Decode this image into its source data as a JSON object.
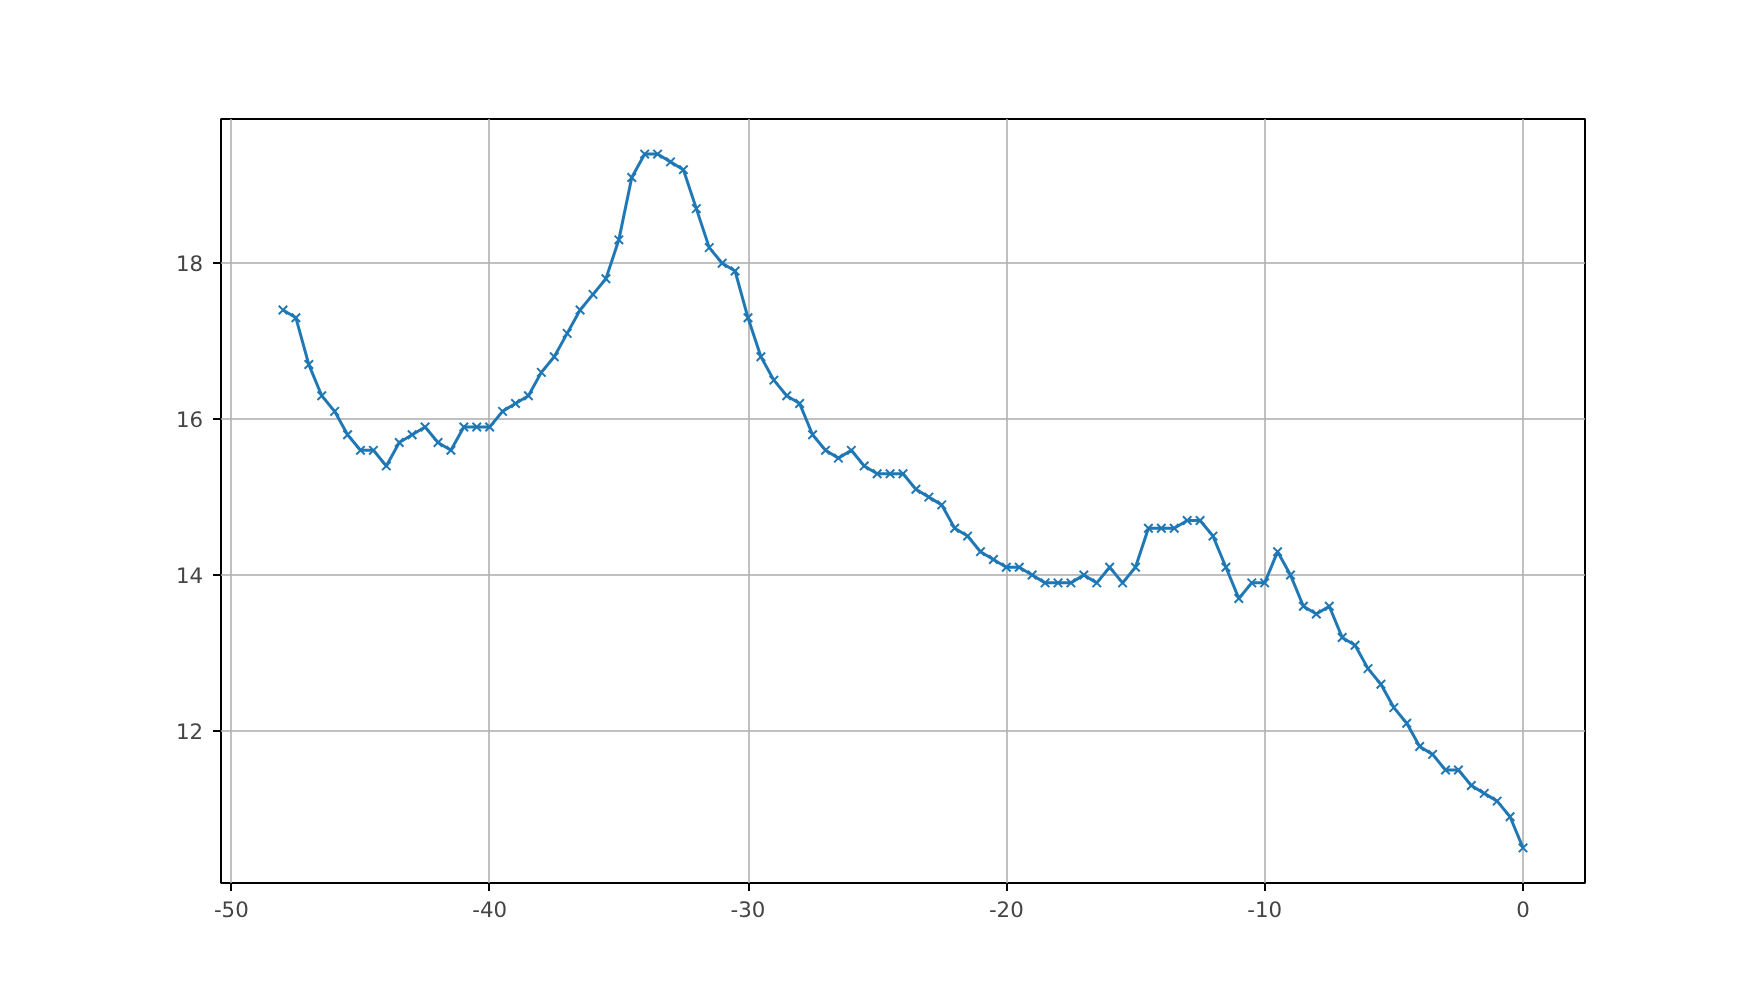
{
  "chart_data": {
    "type": "line",
    "x": [
      -48,
      -47.5,
      -47,
      -46.5,
      -46,
      -45.5,
      -45,
      -44.5,
      -44,
      -43.5,
      -43,
      -42.5,
      -42,
      -41.5,
      -41,
      -40.5,
      -40,
      -39.5,
      -39,
      -38.5,
      -38,
      -37.5,
      -37,
      -36.5,
      -36,
      -35.5,
      -35,
      -34.5,
      -34,
      -33.5,
      -33,
      -32.5,
      -32,
      -31.5,
      -31,
      -30.5,
      -30,
      -29.5,
      -29,
      -28.5,
      -28,
      -27.5,
      -27,
      -26.5,
      -26,
      -25.5,
      -25,
      -24.5,
      -24,
      -23.5,
      -23,
      -22.5,
      -22,
      -21.5,
      -21,
      -20.5,
      -20,
      -19.5,
      -19,
      -18.5,
      -18,
      -17.5,
      -17,
      -16.5,
      -16,
      -15.5,
      -15,
      -14.5,
      -14,
      -13.5,
      -13,
      -12.5,
      -12,
      -11.5,
      -11,
      -10.5,
      -10,
      -9.5,
      -9,
      -8.5,
      -8,
      -7.5,
      -7,
      -6.5,
      -6,
      -5.5,
      -5,
      -4.5,
      -4,
      -3.5,
      -3,
      -2.5,
      -2,
      -1.5,
      -1,
      -0.5,
      0
    ],
    "series": [
      {
        "color": "#1f77b4",
        "values": [
          17.4,
          17.3,
          16.7,
          16.3,
          16.1,
          15.8,
          15.6,
          15.6,
          15.4,
          15.7,
          15.8,
          15.9,
          15.7,
          15.6,
          15.9,
          15.9,
          15.9,
          16.1,
          16.2,
          16.3,
          16.6,
          16.8,
          17.1,
          17.4,
          17.6,
          17.8,
          18.3,
          19.1,
          19.4,
          19.4,
          19.3,
          19.2,
          18.7,
          18.2,
          18.0,
          17.9,
          17.3,
          16.8,
          16.5,
          16.3,
          16.2,
          15.8,
          15.6,
          15.5,
          15.6,
          15.4,
          15.3,
          15.3,
          15.3,
          15.1,
          15.0,
          14.9,
          14.6,
          14.5,
          14.3,
          14.2,
          14.1,
          14.1,
          14.0,
          13.9,
          13.9,
          13.9,
          14.0,
          13.9,
          14.1,
          13.9,
          14.1,
          14.6,
          14.6,
          14.6,
          14.7,
          14.7,
          14.5,
          14.1,
          13.7,
          13.9,
          13.9,
          14.3,
          14.0,
          13.6,
          13.5,
          13.6,
          13.2,
          13.1,
          12.8,
          12.6,
          12.3,
          12.1,
          11.8,
          11.7,
          11.5,
          11.5,
          11.3,
          11.2,
          11.1,
          10.9,
          10.5
        ]
      }
    ],
    "xlim": [
      -50.4,
      2.4
    ],
    "xticks": [
      -50,
      -40,
      -30,
      -20,
      -10,
      0
    ],
    "ylim": [
      10.05,
      19.85
    ],
    "yticks": [
      12,
      14,
      16,
      18
    ],
    "grid": true,
    "marker": "cross",
    "line_style": "solid"
  }
}
